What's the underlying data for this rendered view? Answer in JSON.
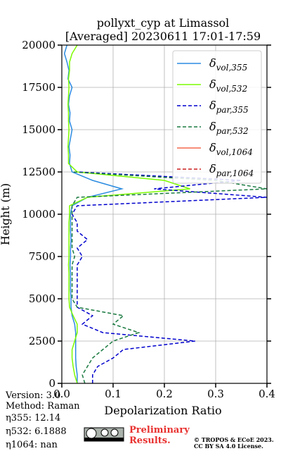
{
  "chart_data": {
    "type": "profile",
    "title": "pollyxt_cyp at Limassol",
    "subtitle": "[Averaged] 20230611 17:01-17:59",
    "x_label": "Depolarization Ratio",
    "y_label": "Height (m)",
    "xlim": [
      0,
      0.4
    ],
    "xticks": [
      {
        "value": 0,
        "label": "0.0"
      },
      0.1,
      0.2,
      0.3,
      0.4
    ],
    "ylim": [
      0,
      20000
    ],
    "yticks": [
      0,
      2500,
      5000,
      7500,
      10000,
      12500,
      15000,
      17500,
      20000
    ],
    "grid": true,
    "legend": "upper right",
    "y": [
      0,
      500,
      1000,
      1500,
      2000,
      2500,
      3000,
      3500,
      4000,
      4500,
      5000,
      5500,
      6000,
      6500,
      7000,
      7500,
      8000,
      8500,
      9000,
      9500,
      10000,
      10500,
      11000,
      11500,
      12000,
      12500,
      13000,
      13500,
      14000,
      14500,
      15000,
      15500,
      16000,
      16500,
      17000,
      17500,
      18000,
      18500,
      19000,
      19500,
      20000
    ],
    "series": [
      {
        "name": "δvol,355",
        "color": "#2b8ce0",
        "dash": false,
        "values": [
          0.03,
          0.03,
          0.028,
          0.027,
          0.027,
          0.027,
          0.027,
          0.025,
          0.02,
          0.018,
          0.018,
          0.017,
          0.017,
          0.017,
          0.016,
          0.017,
          0.017,
          0.018,
          0.017,
          0.017,
          0.017,
          0.02,
          0.05,
          0.117,
          0.06,
          0.02,
          0.015,
          0.016,
          0.014,
          0.017,
          0.02,
          0.015,
          0.016,
          0.013,
          0.015,
          0.02,
          0.012,
          0.014,
          0.01,
          0.005,
          0.01
        ]
      },
      {
        "name": "δvol,532",
        "color": "#7cfc00",
        "dash": false,
        "values": [
          0.03,
          0.025,
          0.022,
          0.02,
          0.02,
          0.025,
          0.03,
          0.03,
          0.022,
          0.015,
          0.014,
          0.014,
          0.014,
          0.014,
          0.013,
          0.014,
          0.014,
          0.014,
          0.014,
          0.014,
          0.015,
          0.015,
          0.05,
          0.25,
          0.2,
          0.03,
          0.013,
          0.013,
          0.012,
          0.013,
          0.014,
          0.013,
          0.013,
          0.012,
          0.013,
          0.014,
          0.013,
          0.015,
          0.015,
          0.02,
          0.03
        ]
      },
      {
        "name": "δpar,355",
        "color": "#0000cd",
        "dash": true,
        "values": [
          0.06,
          0.06,
          0.07,
          0.1,
          0.12,
          0.26,
          0.08,
          0.04,
          0.06,
          0.03,
          0.03,
          0.03,
          0.03,
          0.03,
          0.03,
          0.04,
          0.03,
          0.05,
          0.03,
          0.03,
          0.02,
          0.03,
          0.4,
          0.18,
          0.35,
          0.03,
          null,
          null,
          null,
          null,
          null,
          null,
          null,
          null,
          null,
          null,
          null,
          null,
          null,
          null,
          null
        ]
      },
      {
        "name": "δpar,532",
        "color": "#1a7a40",
        "dash": true,
        "values": [
          0.045,
          0.04,
          0.05,
          0.06,
          0.08,
          0.1,
          0.15,
          0.1,
          0.12,
          0.03,
          0.02,
          0.02,
          0.02,
          0.02,
          0.02,
          0.025,
          0.02,
          0.02,
          0.02,
          0.02,
          0.02,
          0.02,
          0.03,
          0.4,
          0.3,
          0.02,
          null,
          null,
          null,
          null,
          null,
          null,
          null,
          null,
          null,
          null,
          null,
          null,
          null,
          null,
          null
        ]
      },
      {
        "name": "δvol,1064",
        "color": "#f4694f",
        "dash": false,
        "values": [
          null,
          null,
          null,
          null,
          null,
          null,
          null,
          null,
          null,
          null,
          null,
          null,
          null,
          null,
          null,
          null,
          null,
          null,
          null,
          null,
          null,
          null,
          null,
          null,
          null,
          null,
          null,
          null,
          null,
          null,
          null,
          null,
          null,
          null,
          null,
          null,
          null,
          null,
          null,
          null,
          null
        ]
      },
      {
        "name": "δpar,1064",
        "color": "#cc1f1f",
        "dash": true,
        "values": [
          null,
          null,
          null,
          null,
          null,
          null,
          null,
          null,
          null,
          null,
          null,
          null,
          null,
          null,
          null,
          null,
          null,
          null,
          null,
          null,
          null,
          null,
          null,
          null,
          null,
          null,
          null,
          null,
          null,
          null,
          null,
          null,
          null,
          null,
          null,
          null,
          null,
          null,
          null,
          null,
          null
        ]
      }
    ]
  },
  "info": {
    "version": "Version: 3.0",
    "method": "Method: Raman",
    "eta355": "η355:  12.14",
    "eta532": "η532: 6.1888",
    "eta1064": "η1064:    nan",
    "preliminary": [
      "Preliminary",
      "Results."
    ],
    "copyright": [
      "© TROPOS & ECoE 2023.",
      "CC BY SA 4.0 License."
    ]
  }
}
